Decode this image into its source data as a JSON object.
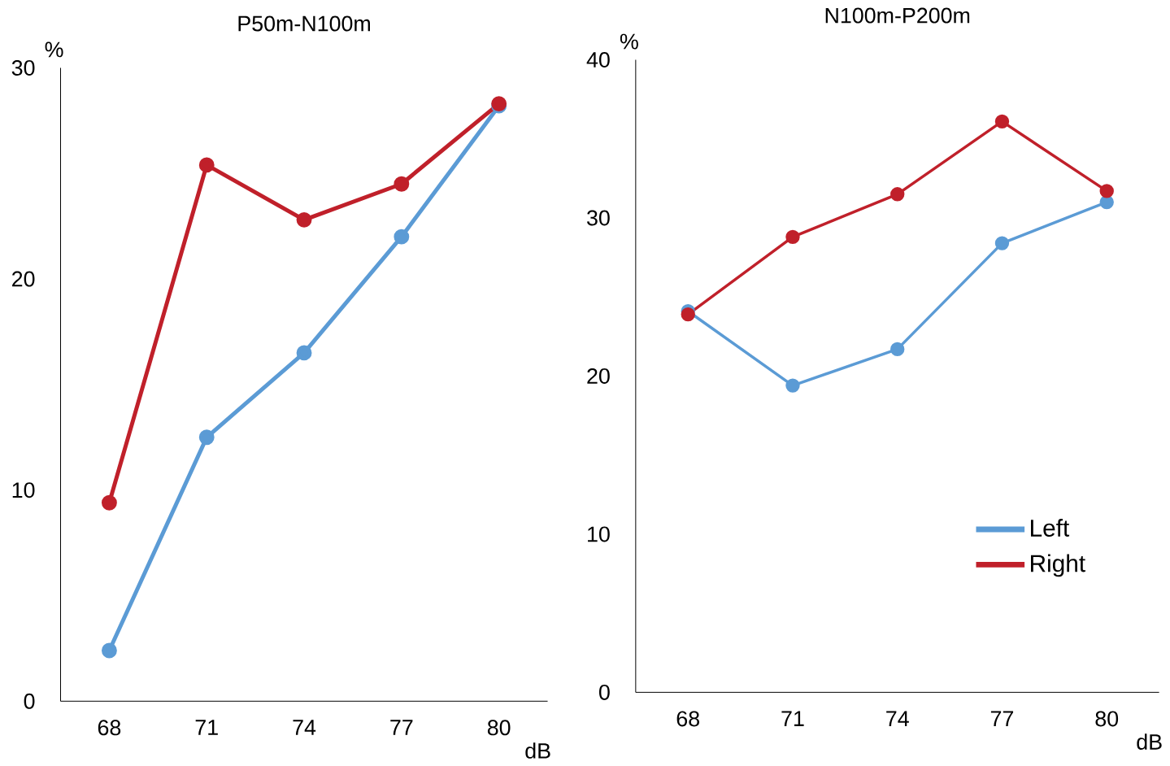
{
  "chart_data": [
    {
      "type": "line",
      "title": "P50m-N100m",
      "xlabel": "dB",
      "ylabel": "%",
      "categories": [
        "68",
        "71",
        "74",
        "77",
        "80"
      ],
      "ylim": [
        0,
        30
      ],
      "yticks": [
        0,
        10,
        20,
        30
      ],
      "grid": false,
      "legend": false,
      "marker": "circle",
      "line_style": "solid",
      "series": [
        {
          "color": "#5b9bd5",
          "values": [
            2.4,
            12.5,
            16.5,
            22.0,
            28.2
          ]
        },
        {
          "color": "#c0202a",
          "values": [
            9.4,
            25.4,
            22.8,
            24.5,
            28.3
          ]
        }
      ]
    },
    {
      "type": "line",
      "title": "N100m-P200m",
      "xlabel": "dB",
      "ylabel": "%",
      "categories": [
        "68",
        "71",
        "74",
        "77",
        "80"
      ],
      "ylim": [
        0,
        40
      ],
      "yticks": [
        0,
        10,
        20,
        30,
        40
      ],
      "grid": false,
      "legend": "bottom right",
      "marker": "circle",
      "line_style": "solid",
      "series": [
        {
          "name": "Left",
          "color": "#5b9bd5",
          "values": [
            24.1,
            19.4,
            21.7,
            28.4,
            31.0
          ]
        },
        {
          "name": "Right",
          "color": "#c0202a",
          "values": [
            23.9,
            28.8,
            31.5,
            36.1,
            31.7
          ]
        }
      ]
    }
  ]
}
